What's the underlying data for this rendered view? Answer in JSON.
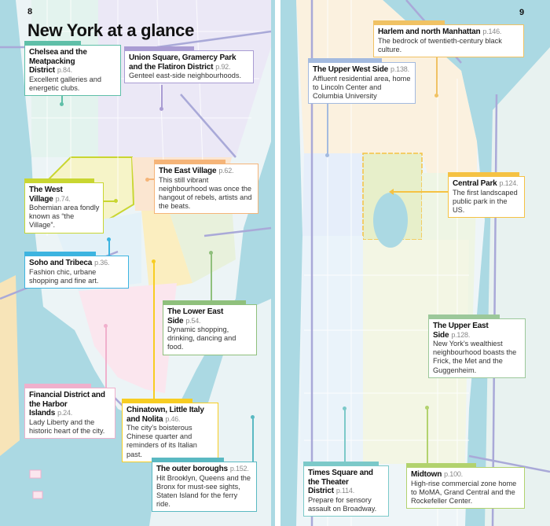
{
  "left_page": {
    "page_number": "8",
    "title": "New York at a glance"
  },
  "right_page": {
    "page_number": "9"
  },
  "areas": [
    {
      "name": "Chelsea and the Meatpacking District",
      "page": "p.84.",
      "desc": "Excellent galleries and energetic clubs.",
      "color": "#5fbfa8"
    },
    {
      "name": "Union Square, Gramercy Park and the Flatiron District",
      "page": "p.92.",
      "desc": "Genteel east-side neighbourhoods.",
      "color": "#a99cd3"
    },
    {
      "name": "The East Village",
      "page": "p.62.",
      "desc": "This still vibrant neighbourhood was once the hangout of rebels, artists and the beats.",
      "color": "#f5b478"
    },
    {
      "name": "The West Village",
      "page": "p.74.",
      "desc": "Bohemian area fondly known as “the Village”.",
      "color": "#c9d631"
    },
    {
      "name": "Soho and Tribeca",
      "page": "p.36.",
      "desc": "Fashion chic, urbane shopping and fine art.",
      "color": "#3db4e0"
    },
    {
      "name": "The Lower East Side",
      "page": "p.54.",
      "desc": "Dynamic shopping, drinking, dancing and food.",
      "color": "#8fc07c"
    },
    {
      "name": "Financial District and the Harbor Islands",
      "page": "p.24.",
      "desc": "Lady Liberty and the historic heart of the city.",
      "color": "#f0b0cc"
    },
    {
      "name": "Chinatown, Little Italy and Nolita",
      "page": "p.46.",
      "desc": "The city’s boisterous Chinese quarter and reminders of its Italian past.",
      "color": "#f7cd22"
    },
    {
      "name": "The outer boroughs",
      "page": "p.152.",
      "desc": "Hit Brooklyn, Queens and the Bronx for must-see sights, Staten Island for the ferry ride.",
      "color": "#5ab9c2"
    },
    {
      "name": "Harlem and north Manhattan",
      "page": "p.146.",
      "desc": "The bedrock of twentieth-century black culture.",
      "color": "#f0c264"
    },
    {
      "name": "The Upper West Side",
      "page": "p.138.",
      "desc": "Affluent residential area, home to Lincoln Center and Columbia University",
      "color": "#a3badf"
    },
    {
      "name": "Central Park",
      "page": "p.124.",
      "desc": "The first landscaped public park in the US.",
      "color": "#f5c243"
    },
    {
      "name": "The Upper East Side",
      "page": "p.128.",
      "desc": "New York’s wealthiest neighbourhood boasts the Frick, the Met and the Guggenheim.",
      "color": "#9cc89a"
    },
    {
      "name": "Times Square and the Theater District",
      "page": "p.114.",
      "desc": "Prepare for sensory assault on Broadway.",
      "color": "#7cc9c9"
    },
    {
      "name": "Midtown",
      "page": "p.100.",
      "desc": "High-rise commercial zone home to MoMA, Grand Central and the Rockefeller Center.",
      "color": "#b2d26e"
    }
  ]
}
